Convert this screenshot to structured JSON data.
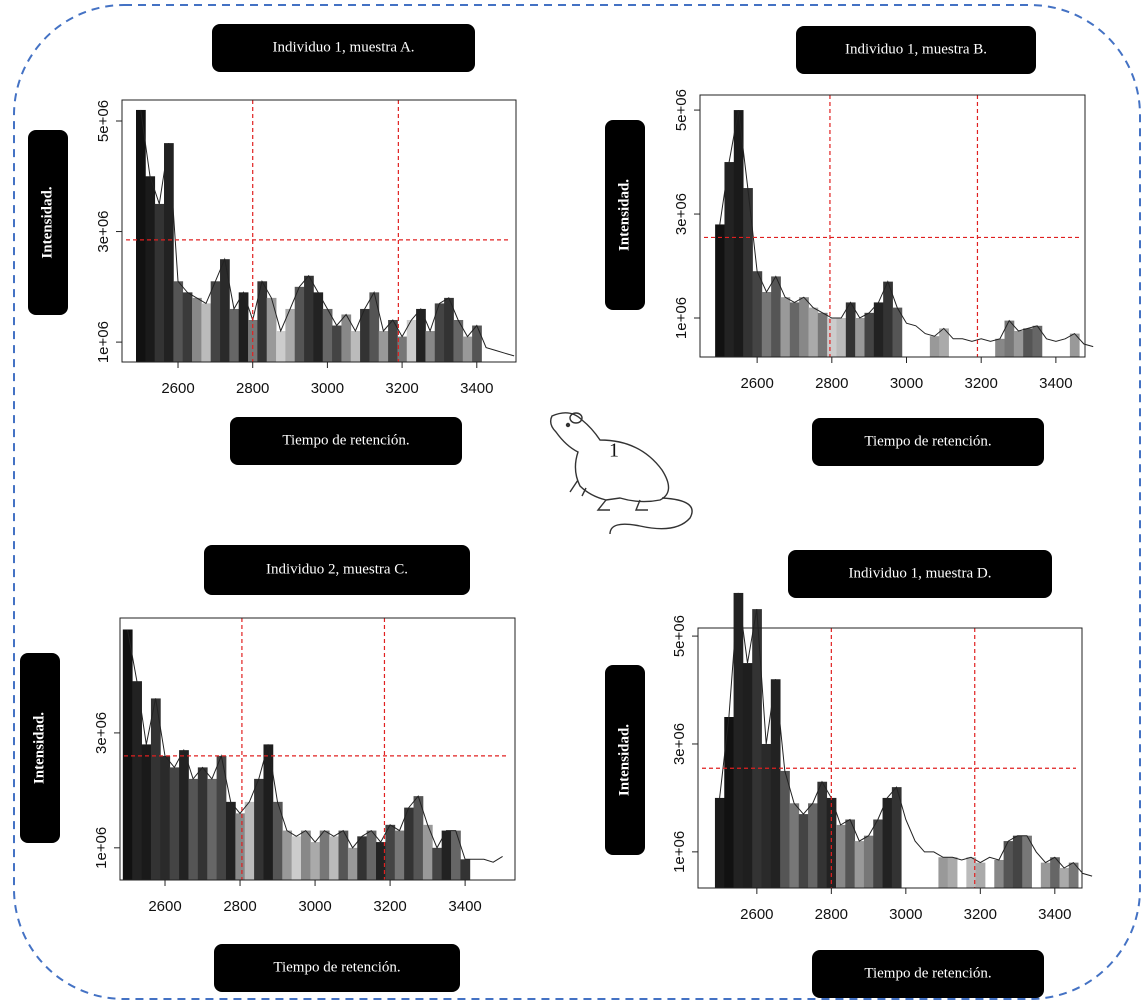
{
  "chart_data": [
    {
      "type": "bar",
      "title": "Individuo 1, muestra A.",
      "xlabel": "Tiempo de retención.",
      "ylabel": "Intensidad.",
      "x": [
        2500,
        2525,
        2550,
        2575,
        2600,
        2625,
        2650,
        2675,
        2700,
        2725,
        2750,
        2775,
        2800,
        2825,
        2850,
        2875,
        2900,
        2925,
        2950,
        2975,
        3000,
        3025,
        3050,
        3075,
        3100,
        3125,
        3150,
        3175,
        3200,
        3225,
        3250,
        3275,
        3300,
        3325,
        3350,
        3375,
        3400,
        3425,
        3450,
        3475,
        3500
      ],
      "values": [
        5200000.0,
        4000000.0,
        3500000.0,
        4600000.0,
        2100000.0,
        1900000.0,
        1800000.0,
        1700000.0,
        2100000.0,
        2500000.0,
        1600000.0,
        1900000.0,
        1400000.0,
        2100000.0,
        1800000.0,
        1200000.0,
        1600000.0,
        2000000.0,
        2200000.0,
        1900000.0,
        1600000.0,
        1300000.0,
        1500000.0,
        1200000.0,
        1600000.0,
        1900000.0,
        1200000.0,
        1400000.0,
        1100000.0,
        1400000.0,
        1600000.0,
        1200000.0,
        1700000.0,
        1800000.0,
        1400000.0,
        1100000.0,
        1300000.0,
        900000.0,
        850000.0,
        800000.0,
        750000.0
      ],
      "bar_colors": [
        "#111",
        "#1a1a1a",
        "#333",
        "#222",
        "#555",
        "#3a3a3a",
        "#888",
        "#bbb",
        "#444",
        "#2a2a2a",
        "#666",
        "#1e1e1e",
        "#777",
        "#333",
        "#999",
        "#ccc",
        "#aaa",
        "#555",
        "#333",
        "#222",
        "#666",
        "#444",
        "#888",
        "#bbb",
        "#333",
        "#555",
        "#999",
        "#444",
        "#777",
        "#ccc",
        "#222",
        "#888",
        "#444",
        "#333",
        "#666",
        "#999",
        "#555",
        null,
        null,
        null,
        null
      ],
      "xlim": [
        2450,
        3505
      ],
      "ylim": [
        640000,
        5380000
      ],
      "xticks": [
        2600,
        2800,
        3000,
        3200,
        3400
      ],
      "yticks": [
        {
          "value": 1000000,
          "label": "1e+06"
        },
        {
          "value": 3000000,
          "label": "3e+06"
        },
        {
          "value": 5000000,
          "label": "5e+06"
        }
      ],
      "vlines": [
        2800,
        3190
      ],
      "hline": 2850000,
      "ref_color": "#e02020"
    },
    {
      "type": "bar",
      "title": "Individuo 1, muestra B.",
      "xlabel": "Tiempo de retención.",
      "ylabel": "Intensidad.",
      "x": [
        2500,
        2525,
        2550,
        2575,
        2600,
        2625,
        2650,
        2675,
        2700,
        2725,
        2750,
        2775,
        2800,
        2825,
        2850,
        2875,
        2900,
        2925,
        2950,
        2975,
        3000,
        3025,
        3050,
        3075,
        3100,
        3125,
        3150,
        3175,
        3200,
        3225,
        3250,
        3275,
        3300,
        3325,
        3350,
        3375,
        3400,
        3425,
        3450,
        3475,
        3500
      ],
      "values": [
        2800000.0,
        4000000.0,
        5000000.0,
        3500000.0,
        1900000.0,
        1500000.0,
        1800000.0,
        1400000.0,
        1300000.0,
        1400000.0,
        1200000.0,
        1100000.0,
        1000000.0,
        1000000.0,
        1300000.0,
        1000000.0,
        1100000.0,
        1300000.0,
        1700000.0,
        1200000.0,
        900000.0,
        850000.0,
        700000.0,
        650000.0,
        800000.0,
        600000.0,
        600000.0,
        550000.0,
        600000.0,
        550000.0,
        600000.0,
        950000.0,
        750000.0,
        800000.0,
        850000.0,
        600000.0,
        550000.0,
        600000.0,
        700000.0,
        500000.0,
        450000.0
      ],
      "bar_colors": [
        "#111",
        "#222",
        "#1a1a1a",
        "#333",
        "#444",
        "#777",
        "#555",
        "#999",
        "#666",
        "#888",
        "#aaa",
        "#777",
        "#ccc",
        "#bbb",
        "#333",
        "#999",
        "#444",
        "#222",
        "#333",
        "#555",
        null,
        null,
        null,
        "#999",
        "#aaa",
        null,
        null,
        null,
        null,
        null,
        "#888",
        "#777",
        "#999",
        "#555",
        "#666",
        null,
        null,
        null,
        "#999",
        null,
        null
      ],
      "xlim": [
        2447,
        3478
      ],
      "ylim": [
        250000,
        5290000
      ],
      "xticks": [
        2600,
        2800,
        3000,
        3200,
        3400
      ],
      "yticks": [
        {
          "value": 1000000,
          "label": "1e+06"
        },
        {
          "value": 3000000,
          "label": "3e+06"
        },
        {
          "value": 5000000,
          "label": "5e+06"
        }
      ],
      "vlines": [
        2795,
        3190
      ],
      "hline": 2550000,
      "ref_color": "#e02020"
    },
    {
      "type": "bar",
      "title": "Individuo 2, muestra C.",
      "xlabel": "Tiempo de retención.",
      "ylabel": "Intensidad.",
      "x": [
        2500,
        2525,
        2550,
        2575,
        2600,
        2625,
        2650,
        2675,
        2700,
        2725,
        2750,
        2775,
        2800,
        2825,
        2850,
        2875,
        2900,
        2925,
        2950,
        2975,
        3000,
        3025,
        3050,
        3075,
        3100,
        3125,
        3150,
        3175,
        3200,
        3225,
        3250,
        3275,
        3300,
        3325,
        3350,
        3375,
        3400,
        3425,
        3450,
        3475,
        3500
      ],
      "values": [
        4800000.0,
        3900000.0,
        2800000.0,
        3600000.0,
        2600000.0,
        2400000.0,
        2700000.0,
        2200000.0,
        2400000.0,
        2200000.0,
        2600000.0,
        1800000.0,
        1600000.0,
        1800000.0,
        2200000.0,
        2800000.0,
        1800000.0,
        1300000.0,
        1200000.0,
        1300000.0,
        1100000.0,
        1300000.0,
        1200000.0,
        1300000.0,
        1000000.0,
        1200000.0,
        1300000.0,
        1100000.0,
        1400000.0,
        1300000.0,
        1700000.0,
        1900000.0,
        1400000.0,
        1000000.0,
        1300000.0,
        1300000.0,
        800000.0,
        800000.0,
        800000.0,
        750000.0,
        850000.0
      ],
      "bar_colors": [
        "#111",
        "#222",
        "#1a1a1a",
        "#333",
        "#2a2a2a",
        "#444",
        "#222",
        "#555",
        "#333",
        "#666",
        "#444",
        "#222",
        "#888",
        "#bbb",
        "#333",
        "#1e1e1e",
        "#555",
        "#999",
        "#ccc",
        "#888",
        "#aaa",
        "#777",
        "#bbb",
        "#555",
        "#999",
        "#333",
        "#666",
        "#222",
        "#444",
        "#777",
        "#333",
        "#555",
        "#999",
        "#444",
        "#222",
        "#666",
        "#333",
        null,
        null,
        null,
        null
      ],
      "xlim": [
        2480,
        3533
      ],
      "ylim": [
        440000,
        5000000
      ],
      "xticks": [
        2600,
        2800,
        3000,
        3200,
        3400
      ],
      "yticks": [
        {
          "value": 1000000,
          "label": "1e+06"
        },
        {
          "value": 3000000,
          "label": "3e+06"
        }
      ],
      "vlines": [
        2805,
        3185
      ],
      "hline": 2600000,
      "ref_color": "#e02020"
    },
    {
      "type": "bar",
      "title": "Individuo 1, muestra D.",
      "xlabel": "Tiempo de retención.",
      "ylabel": "Intensidad.",
      "x": [
        2500,
        2525,
        2550,
        2575,
        2600,
        2625,
        2650,
        2675,
        2700,
        2725,
        2750,
        2775,
        2800,
        2825,
        2850,
        2875,
        2900,
        2925,
        2950,
        2975,
        3000,
        3025,
        3050,
        3075,
        3100,
        3125,
        3150,
        3175,
        3200,
        3225,
        3250,
        3275,
        3300,
        3325,
        3350,
        3375,
        3400,
        3425,
        3450,
        3475,
        3500
      ],
      "values": [
        2000000.0,
        3500000.0,
        5800000.0,
        4500000.0,
        5500000.0,
        3000000.0,
        4200000.0,
        2500000.0,
        1900000.0,
        1700000.0,
        1900000.0,
        2300000.0,
        2000000.0,
        1500000.0,
        1600000.0,
        1200000.0,
        1300000.0,
        1600000.0,
        2000000.0,
        2200000.0,
        1600000.0,
        1200000.0,
        1000000.0,
        1000000.0,
        900000.0,
        900000.0,
        850000.0,
        900000.0,
        800000.0,
        900000.0,
        850000.0,
        1200000.0,
        1300000.0,
        1300000.0,
        1000000.0,
        800000.0,
        900000.0,
        700000.0,
        800000.0,
        600000.0,
        550000.0
      ],
      "bar_colors": [
        "#1a1a1a",
        "#111",
        "#222",
        "#1e1e1e",
        "#333",
        "#2a2a2a",
        "#222",
        "#555",
        "#777",
        "#444",
        "#666",
        "#333",
        "#222",
        "#888",
        "#555",
        "#999",
        "#777",
        "#444",
        "#222",
        "#333",
        null,
        null,
        null,
        null,
        "#999",
        "#aaa",
        null,
        "#bbb",
        "#aaa",
        null,
        "#888",
        "#555",
        "#444",
        "#777",
        null,
        "#999",
        "#666",
        "#aaa",
        "#777",
        null,
        null
      ],
      "xlim": [
        2442,
        3473
      ],
      "ylim": [
        330000,
        5150000
      ],
      "xticks": [
        2600,
        2800,
        3000,
        3200,
        3400
      ],
      "yticks": [
        {
          "value": 1000000,
          "label": "1e+06"
        },
        {
          "value": 3000000,
          "label": "3e+06"
        },
        {
          "value": 5000000,
          "label": "5e+06"
        }
      ],
      "vlines": [
        2800,
        3185
      ],
      "hline": 2550000,
      "ref_color": "#e02020"
    }
  ],
  "mouse_label": "1"
}
